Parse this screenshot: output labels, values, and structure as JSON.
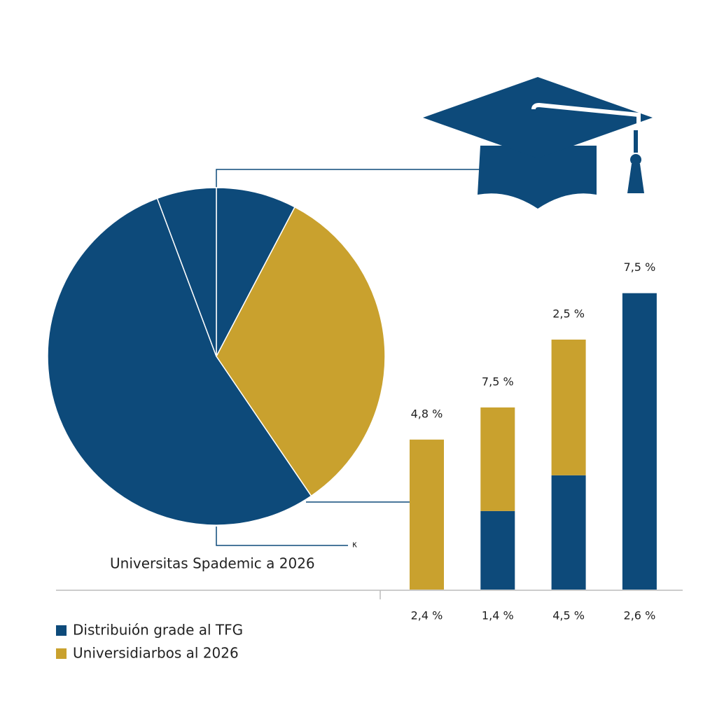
{
  "chart_data": [
    {
      "type": "pie",
      "title": "Universitas Spademic a 2026",
      "note": "κ",
      "values": [
        7.7,
        32.8,
        53.8,
        5.7
      ],
      "colors": [
        "#0d4a7a",
        "#c9a12e",
        "#0d4a7a",
        "#0d4a7a"
      ]
    },
    {
      "type": "bar",
      "stacked": true,
      "categories": [
        "2,4 %",
        "1,4 %",
        "4,5 %",
        "2,6 %"
      ],
      "top_labels": [
        "4,8 %",
        "7,5 %",
        "2,5 %",
        "7,5 %"
      ],
      "ylim": [
        0,
        10
      ],
      "series": [
        {
          "name": "Distribuión grade al TFG",
          "color": "#0d4a7a",
          "values": [
            0,
            2.2,
            3.2,
            8.3
          ]
        },
        {
          "name": "Universidiarbos al 2026",
          "color": "#c9a12e",
          "values": [
            4.2,
            2.9,
            3.8,
            0
          ]
        }
      ]
    }
  ]
}
